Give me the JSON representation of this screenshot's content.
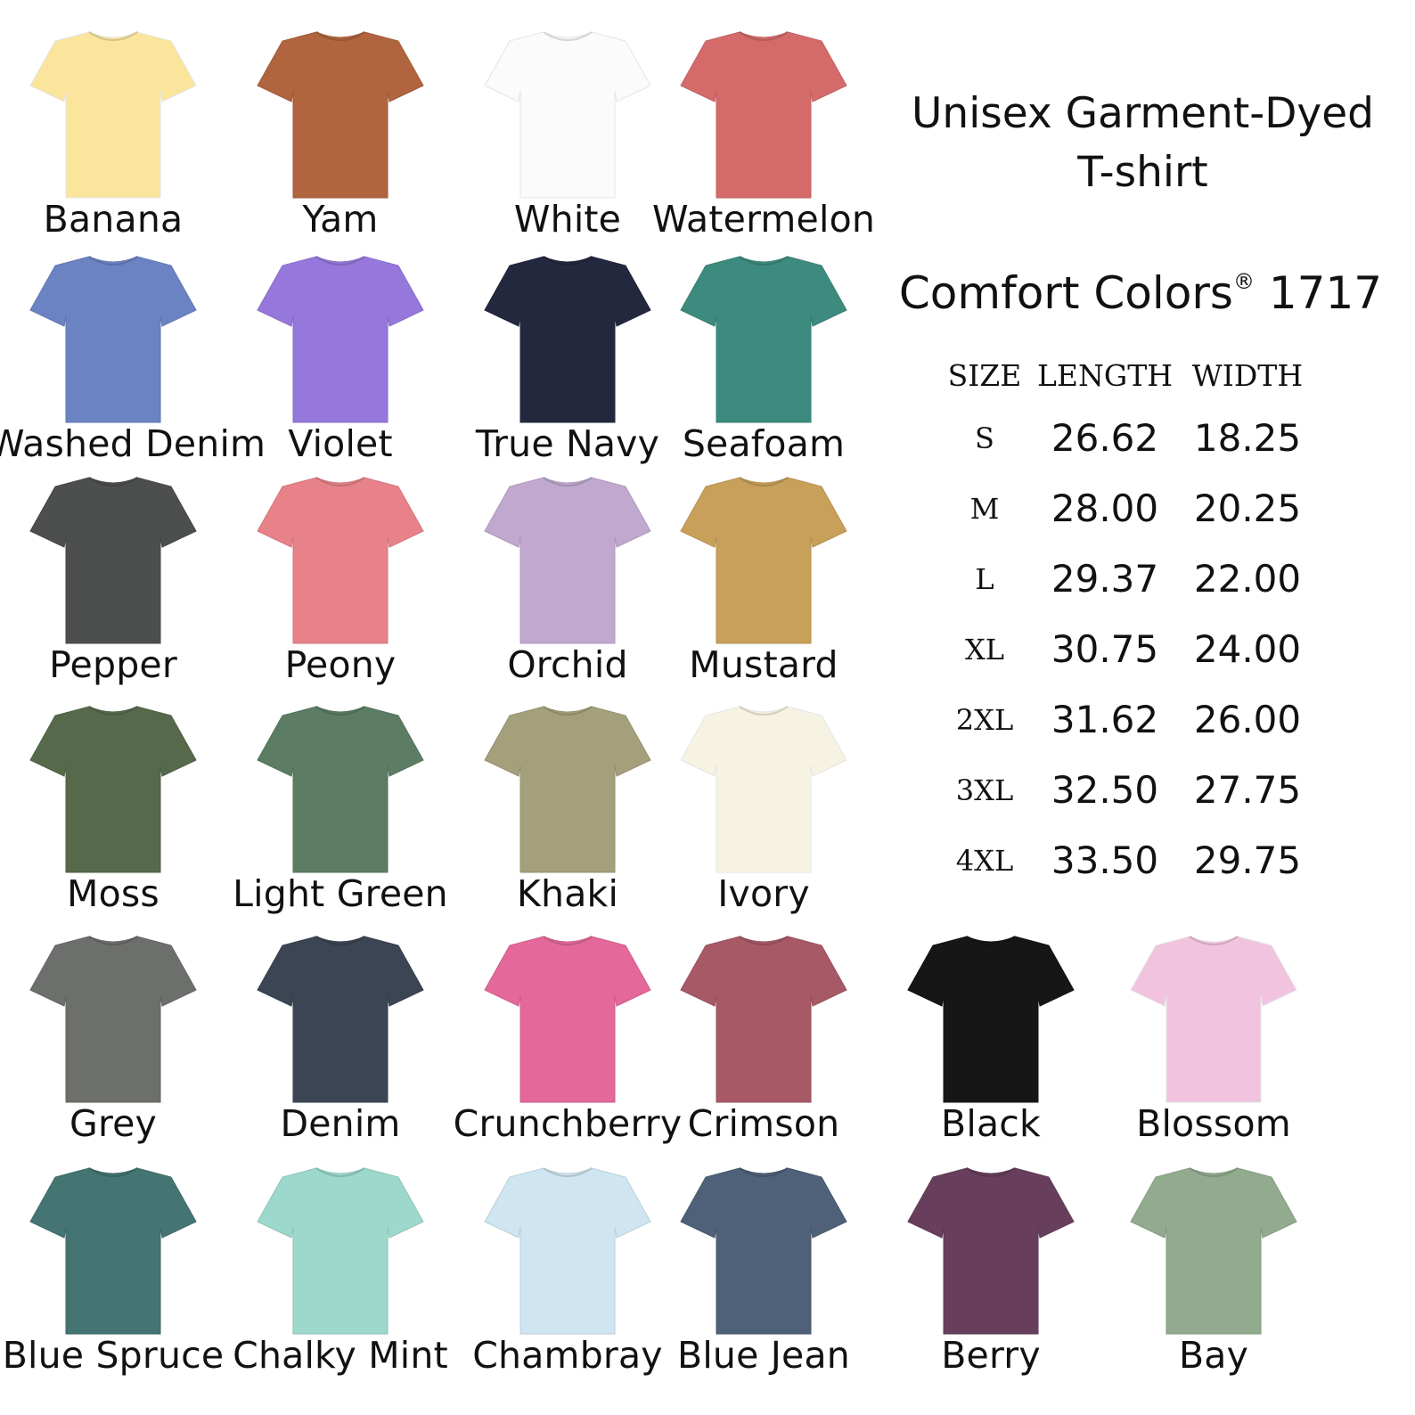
{
  "title_line1": "Unisex Garment-Dyed",
  "title_line2": "T-shirt",
  "brand": "Comfort Colors",
  "brand_mark": "®",
  "model": "1717",
  "size_table": {
    "headers": [
      "SIZE",
      "LENGTH",
      "WIDTH"
    ],
    "rows": [
      {
        "size": "S",
        "length": "26.62",
        "width": "18.25"
      },
      {
        "size": "M",
        "length": "28.00",
        "width": "20.25"
      },
      {
        "size": "L",
        "length": "29.37",
        "width": "22.00"
      },
      {
        "size": "XL",
        "length": "30.75",
        "width": "24.00"
      },
      {
        "size": "2XL",
        "length": "31.62",
        "width": "26.00"
      },
      {
        "size": "3XL",
        "length": "32.50",
        "width": "27.75"
      },
      {
        "size": "4XL",
        "length": "33.50",
        "width": "29.75"
      }
    ]
  },
  "colors": [
    {
      "name": "Banana",
      "hex": "#fbe59c"
    },
    {
      "name": "Yam",
      "hex": "#b0653f"
    },
    {
      "name": "White",
      "hex": "#fbfbfb"
    },
    {
      "name": "Watermelon",
      "hex": "#d46b6a"
    },
    {
      "name": "Washed Denim",
      "hex": "#6c83c3"
    },
    {
      "name": "Violet",
      "hex": "#9678dc"
    },
    {
      "name": "True Navy",
      "hex": "#23283f"
    },
    {
      "name": "Seafoam",
      "hex": "#3d8b7e"
    },
    {
      "name": "Pepper",
      "hex": "#4d4e4e"
    },
    {
      "name": "Peony",
      "hex": "#e7828a"
    },
    {
      "name": "Orchid",
      "hex": "#c0a8cf"
    },
    {
      "name": "Mustard",
      "hex": "#c8a05a"
    },
    {
      "name": "Moss",
      "hex": "#566a4b"
    },
    {
      "name": "Light Green",
      "hex": "#5c7d63"
    },
    {
      "name": "Khaki",
      "hex": "#a5a07c"
    },
    {
      "name": "Ivory",
      "hex": "#f7f3e3"
    },
    {
      "name": "Grey",
      "hex": "#6d6f6c"
    },
    {
      "name": "Denim",
      "hex": "#3c4553"
    },
    {
      "name": "Crunchberry",
      "hex": "#e4689a"
    },
    {
      "name": "Crimson",
      "hex": "#a75966"
    },
    {
      "name": "Black",
      "hex": "#161616"
    },
    {
      "name": "Blossom",
      "hex": "#f1c3df"
    },
    {
      "name": "Blue Spruce",
      "hex": "#447572"
    },
    {
      "name": "Chalky Mint",
      "hex": "#9dd8cc"
    },
    {
      "name": "Chambray",
      "hex": "#cfe5f1"
    },
    {
      "name": "Blue Jean",
      "hex": "#4f6178"
    },
    {
      "name": "Berry",
      "hex": "#673f5c"
    },
    {
      "name": "Bay",
      "hex": "#92ab8e"
    }
  ]
}
